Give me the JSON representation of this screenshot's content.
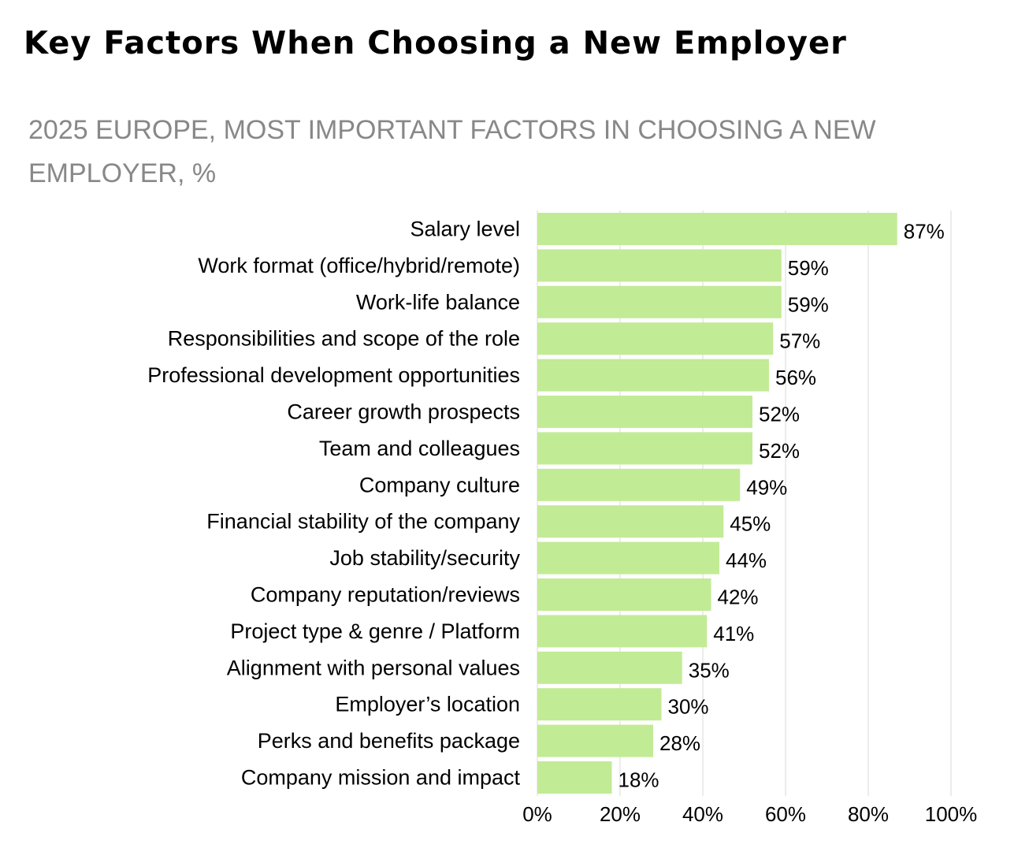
{
  "header": {
    "title": "Key Factors When Choosing a New Employer",
    "subtitle": "2025 EUROPE, MOST IMPORTANT FACTORS IN CHOOSING A NEW EMPLOYER, %"
  },
  "colors": {
    "bar": "#c2eb95",
    "grid": "#d9d9d9",
    "text": "#000000",
    "subtitle": "#888888"
  },
  "chart_data": {
    "type": "bar",
    "orientation": "horizontal",
    "title": "Key Factors When Choosing a New Employer",
    "subtitle": "2025 EUROPE, MOST IMPORTANT FACTORS IN CHOOSING A NEW EMPLOYER, %",
    "categories": [
      "Salary level",
      "Work format (office/hybrid/remote)",
      "Work-life balance",
      "Responsibilities and scope of the role",
      "Professional development opportunities",
      "Career growth prospects",
      "Team and colleagues",
      "Company culture",
      "Financial stability of the company",
      "Job stability/security",
      "Company reputation/reviews",
      "Project type & genre / Platform",
      "Alignment with personal values",
      "Employer’s location",
      "Perks and benefits package",
      "Company mission and impact"
    ],
    "values": [
      87,
      59,
      59,
      57,
      56,
      52,
      52,
      49,
      45,
      44,
      42,
      41,
      35,
      30,
      28,
      18
    ],
    "value_labels": [
      "87%",
      "59%",
      "59%",
      "57%",
      "56%",
      "52%",
      "52%",
      "49%",
      "45%",
      "44%",
      "42%",
      "41%",
      "35%",
      "30%",
      "28%",
      "18%"
    ],
    "xlim": [
      0,
      100
    ],
    "xticks": [
      0,
      20,
      40,
      60,
      80,
      100
    ],
    "xtick_labels": [
      "0%",
      "20%",
      "40%",
      "60%",
      "80%",
      "100%"
    ],
    "xlabel": "",
    "ylabel": "",
    "grid": true,
    "legend": "none"
  }
}
